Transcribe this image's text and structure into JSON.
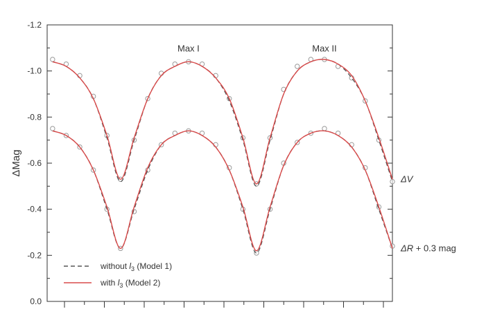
{
  "chart_data": {
    "type": "line",
    "title": "",
    "xlabel": "",
    "ylabel": "ΔMag",
    "ylim": [
      0.0,
      -1.2
    ],
    "y_inverted": true,
    "y_ticks": [
      0.0,
      -0.2,
      -0.4,
      -0.6,
      -0.8,
      -1.0,
      -1.2
    ],
    "y_tick_labels": [
      "0.0",
      "-0.2",
      "-0.4",
      "-0.6",
      "-0.8",
      "-1.0",
      "-1.2"
    ],
    "xlim": [
      -0.27,
      1.0
    ],
    "x_tick_labels_shown": false,
    "x_tick_count": 17,
    "grid": false,
    "legend_position": "bottom-left",
    "annotations": [
      {
        "text": "Max I",
        "x": 0.25,
        "y": -1.085
      },
      {
        "text": "Max II",
        "x": 0.75,
        "y": -1.085
      }
    ],
    "series": [
      {
        "label": "ΔV",
        "label_main": "ΔV",
        "label_suffix": "",
        "observed": {
          "x": [
            -0.25,
            -0.2,
            -0.15,
            -0.1,
            -0.05,
            0.0,
            0.05,
            0.1,
            0.15,
            0.2,
            0.25,
            0.3,
            0.35,
            0.4,
            0.45,
            0.5,
            0.55,
            0.6,
            0.65,
            0.7,
            0.75,
            0.8,
            0.85,
            0.9,
            0.95,
            1.0
          ],
          "y": [
            -1.05,
            -1.03,
            -0.98,
            -0.89,
            -0.72,
            -0.53,
            -0.7,
            -0.88,
            -0.99,
            -1.03,
            -1.04,
            -1.03,
            -0.98,
            -0.88,
            -0.71,
            -0.51,
            -0.71,
            -0.92,
            -1.02,
            -1.05,
            -1.05,
            -1.02,
            -0.97,
            -0.87,
            -0.7,
            -0.52
          ]
        },
        "model_with_l3": {
          "x": [
            -0.25,
            -0.2,
            -0.15,
            -0.1,
            -0.05,
            0.0,
            0.05,
            0.1,
            0.15,
            0.2,
            0.25,
            0.3,
            0.35,
            0.4,
            0.45,
            0.5,
            0.55,
            0.6,
            0.65,
            0.7,
            0.75,
            0.8,
            0.85,
            0.9,
            0.95,
            1.0
          ],
          "y": [
            -1.04,
            -1.02,
            -0.97,
            -0.88,
            -0.72,
            -0.53,
            -0.71,
            -0.88,
            -0.98,
            -1.02,
            -1.04,
            -1.02,
            -0.97,
            -0.88,
            -0.71,
            -0.51,
            -0.71,
            -0.9,
            -1.0,
            -1.04,
            -1.05,
            -1.03,
            -0.98,
            -0.87,
            -0.71,
            -0.53
          ]
        },
        "model_without_l3": {
          "x": [
            -0.25,
            -0.2,
            -0.15,
            -0.1,
            -0.05,
            0.0,
            0.05,
            0.1,
            0.15,
            0.2,
            0.25,
            0.3,
            0.35,
            0.4,
            0.45,
            0.5,
            0.55,
            0.6,
            0.65,
            0.7,
            0.75,
            0.8,
            0.85,
            0.9,
            0.95,
            1.0
          ],
          "y": [
            -1.04,
            -1.02,
            -0.97,
            -0.88,
            -0.71,
            -0.52,
            -0.7,
            -0.88,
            -0.98,
            -1.02,
            -1.04,
            -1.02,
            -0.97,
            -0.87,
            -0.7,
            -0.5,
            -0.7,
            -0.9,
            -1.0,
            -1.04,
            -1.05,
            -1.03,
            -0.97,
            -0.87,
            -0.7,
            -0.52
          ]
        }
      },
      {
        "label": "ΔR + 0.3 mag",
        "label_main": "ΔR",
        "label_suffix": " + 0.3 mag",
        "observed": {
          "x": [
            -0.25,
            -0.2,
            -0.15,
            -0.1,
            -0.05,
            0.0,
            0.05,
            0.1,
            0.15,
            0.2,
            0.25,
            0.3,
            0.35,
            0.4,
            0.45,
            0.5,
            0.55,
            0.6,
            0.65,
            0.7,
            0.75,
            0.8,
            0.85,
            0.9,
            0.95,
            1.0
          ],
          "y": [
            -0.75,
            -0.72,
            -0.67,
            -0.57,
            -0.4,
            -0.23,
            -0.39,
            -0.57,
            -0.68,
            -0.73,
            -0.74,
            -0.73,
            -0.68,
            -0.58,
            -0.4,
            -0.21,
            -0.4,
            -0.6,
            -0.69,
            -0.73,
            -0.75,
            -0.73,
            -0.68,
            -0.58,
            -0.41,
            -0.24
          ]
        },
        "model_with_l3": {
          "x": [
            -0.25,
            -0.2,
            -0.15,
            -0.1,
            -0.05,
            0.0,
            0.05,
            0.1,
            0.15,
            0.2,
            0.25,
            0.3,
            0.35,
            0.4,
            0.45,
            0.5,
            0.55,
            0.6,
            0.65,
            0.7,
            0.75,
            0.8,
            0.85,
            0.9,
            0.95,
            1.0
          ],
          "y": [
            -0.74,
            -0.72,
            -0.67,
            -0.57,
            -0.41,
            -0.23,
            -0.41,
            -0.58,
            -0.68,
            -0.72,
            -0.74,
            -0.72,
            -0.67,
            -0.57,
            -0.41,
            -0.22,
            -0.41,
            -0.59,
            -0.69,
            -0.73,
            -0.74,
            -0.72,
            -0.67,
            -0.57,
            -0.41,
            -0.23
          ]
        },
        "model_without_l3": {
          "x": [
            -0.25,
            -0.2,
            -0.15,
            -0.1,
            -0.05,
            0.0,
            0.05,
            0.1,
            0.15,
            0.2,
            0.25,
            0.3,
            0.35,
            0.4,
            0.45,
            0.5,
            0.55,
            0.6,
            0.65,
            0.7,
            0.75,
            0.8,
            0.85,
            0.9,
            0.95,
            1.0
          ],
          "y": [
            -0.74,
            -0.72,
            -0.67,
            -0.57,
            -0.4,
            -0.23,
            -0.4,
            -0.57,
            -0.68,
            -0.72,
            -0.74,
            -0.72,
            -0.67,
            -0.57,
            -0.4,
            -0.21,
            -0.4,
            -0.59,
            -0.69,
            -0.73,
            -0.74,
            -0.72,
            -0.67,
            -0.57,
            -0.4,
            -0.23
          ]
        }
      }
    ],
    "legend": [
      {
        "style": "dashed",
        "text": "without ",
        "sym": "l",
        "sub": "3",
        "tail": " (Model 1)",
        "color": "#555555"
      },
      {
        "style": "solid",
        "text": "with ",
        "sym": "l",
        "sub": "3",
        "tail": " (Model 2)",
        "color": "#d94a4a"
      }
    ],
    "colors": {
      "model_with_l3": "#d94a4a",
      "model_without_l3": "#555555",
      "observed": "#9a9a9a",
      "axis": "#333333"
    }
  }
}
